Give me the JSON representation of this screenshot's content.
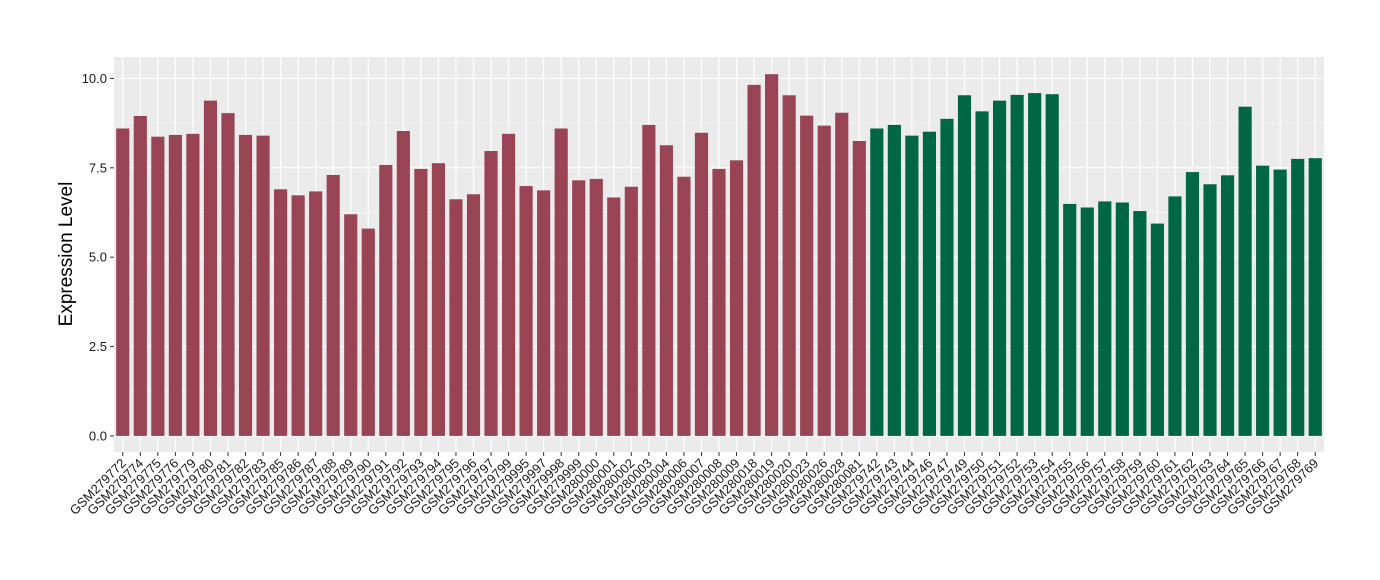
{
  "chart_data": {
    "type": "bar",
    "title": "",
    "xlabel": "",
    "ylabel": "Expression Level",
    "ylim": [
      -0.45,
      10.6
    ],
    "yticks": [
      0.0,
      2.5,
      5.0,
      7.5,
      10.0
    ],
    "ytick_labels": [
      "0.0",
      "2.5",
      "5.0",
      "7.5",
      "10.0"
    ],
    "grid": true,
    "legend": "none",
    "colors": {
      "group1": "#994455",
      "group2": "#006644",
      "panel": "#ebebeb",
      "grid": "#ffffff"
    },
    "categories": [
      "GSM279772",
      "GSM279774",
      "GSM279775",
      "GSM279776",
      "GSM279779",
      "GSM279780",
      "GSM279781",
      "GSM279782",
      "GSM279783",
      "GSM279785",
      "GSM279786",
      "GSM279787",
      "GSM279788",
      "GSM279789",
      "GSM279790",
      "GSM279791",
      "GSM279792",
      "GSM279793",
      "GSM279794",
      "GSM279795",
      "GSM279796",
      "GSM279797",
      "GSM279799",
      "GSM279995",
      "GSM279997",
      "GSM279998",
      "GSM279999",
      "GSM280000",
      "GSM280001",
      "GSM280002",
      "GSM280003",
      "GSM280004",
      "GSM280006",
      "GSM280007",
      "GSM280008",
      "GSM280009",
      "GSM280018",
      "GSM280019",
      "GSM280020",
      "GSM280023",
      "GSM280026",
      "GSM280028",
      "GSM280081",
      "GSM279742",
      "GSM279743",
      "GSM279744",
      "GSM279746",
      "GSM279747",
      "GSM279749",
      "GSM279750",
      "GSM279751",
      "GSM279752",
      "GSM279753",
      "GSM279754",
      "GSM279755",
      "GSM279756",
      "GSM279757",
      "GSM279758",
      "GSM279759",
      "GSM279760",
      "GSM279761",
      "GSM279762",
      "GSM279763",
      "GSM279764",
      "GSM279765",
      "GSM279766",
      "GSM279767",
      "GSM279768",
      "GSM279769"
    ],
    "values": [
      8.6,
      8.95,
      8.37,
      8.42,
      8.45,
      9.38,
      9.03,
      8.42,
      8.4,
      6.9,
      6.73,
      6.84,
      7.3,
      6.2,
      5.8,
      7.58,
      8.53,
      7.47,
      7.63,
      6.62,
      6.76,
      7.97,
      8.45,
      6.99,
      6.87,
      8.6,
      7.15,
      7.19,
      6.67,
      6.97,
      8.7,
      8.13,
      7.25,
      8.48,
      7.47,
      7.71,
      9.82,
      10.12,
      9.53,
      8.96,
      8.68,
      9.04,
      8.25,
      8.6,
      8.7,
      8.4,
      8.51,
      8.87,
      9.53,
      9.08,
      9.38,
      9.54,
      9.59,
      9.56,
      6.49,
      6.39,
      6.56,
      6.53,
      6.29,
      5.94,
      6.7,
      7.38,
      7.04,
      7.29,
      9.21,
      7.56,
      7.45,
      7.75,
      7.77
    ],
    "groups": [
      "g1",
      "g1",
      "g1",
      "g1",
      "g1",
      "g1",
      "g1",
      "g1",
      "g1",
      "g1",
      "g1",
      "g1",
      "g1",
      "g1",
      "g1",
      "g1",
      "g1",
      "g1",
      "g1",
      "g1",
      "g1",
      "g1",
      "g1",
      "g1",
      "g1",
      "g1",
      "g1",
      "g1",
      "g1",
      "g1",
      "g1",
      "g1",
      "g1",
      "g1",
      "g1",
      "g1",
      "g1",
      "g1",
      "g1",
      "g1",
      "g1",
      "g1",
      "g1",
      "g2",
      "g2",
      "g2",
      "g2",
      "g2",
      "g2",
      "g2",
      "g2",
      "g2",
      "g2",
      "g2",
      "g2",
      "g2",
      "g2",
      "g2",
      "g2",
      "g2",
      "g2",
      "g2",
      "g2",
      "g2",
      "g2",
      "g2",
      "g2",
      "g2",
      "g2"
    ]
  }
}
